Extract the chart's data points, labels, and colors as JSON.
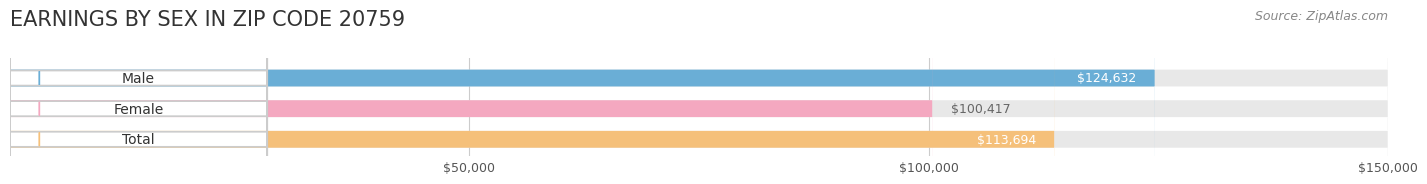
{
  "title": "EARNINGS BY SEX IN ZIP CODE 20759",
  "source": "Source: ZipAtlas.com",
  "categories": [
    "Male",
    "Female",
    "Total"
  ],
  "values": [
    124632,
    100417,
    113694
  ],
  "labels": [
    "$124,632",
    "$100,417",
    "$113,694"
  ],
  "bar_colors": [
    "#6aaed6",
    "#f4a8c0",
    "#f5c07a"
  ],
  "bar_bg_color": "#eeeeee",
  "label_colors": [
    "#ffffff",
    "#888888",
    "#ffffff"
  ],
  "category_colors": [
    "#6aaed6",
    "#f4a8c0",
    "#f5c07a"
  ],
  "xlim": [
    0,
    150000
  ],
  "xticks": [
    0,
    50000,
    100000,
    150000
  ],
  "xtick_labels": [
    "",
    "$50,000",
    "$100,000",
    "$150,000"
  ],
  "title_fontsize": 15,
  "source_fontsize": 9,
  "bar_label_fontsize": 9,
  "cat_label_fontsize": 10,
  "tick_fontsize": 9,
  "background_color": "#ffffff",
  "grid_color": "#cccccc"
}
